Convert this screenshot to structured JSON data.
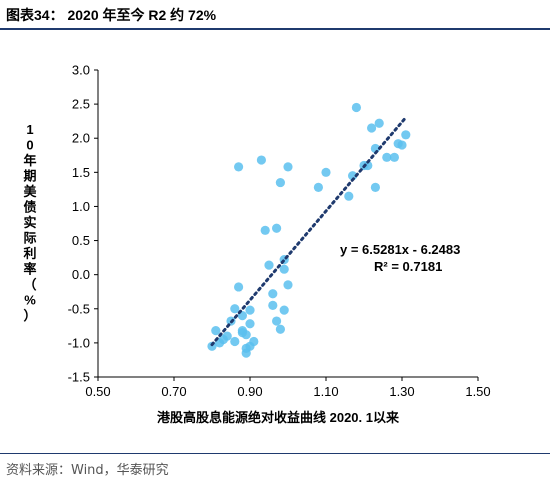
{
  "header": {
    "title": "图表34：  2020 年至今 R2 约 72%"
  },
  "footer": {
    "source": "资料来源：Wind，华泰研究"
  },
  "chart_data": {
    "type": "scatter",
    "title": "图表34：  2020 年至今 R2 约 72%",
    "xlabel": "港股高股息能源绝对收益曲线  2020. 1以来",
    "ylabel": "10年期美债实际利率（%）",
    "xlim": [
      0.5,
      1.5
    ],
    "ylim": [
      -1.5,
      3.0
    ],
    "x_ticks": [
      "0.50",
      "0.70",
      "0.90",
      "1.10",
      "1.30",
      "1.50"
    ],
    "y_ticks": [
      "3.0",
      "2.5",
      "2.0",
      "1.5",
      "1.0",
      "0.5",
      "0.0",
      "-0.5",
      "-1.0",
      "-1.5"
    ],
    "grid": false,
    "point_color": "#5bc0ee",
    "trendline_color": "#1f3a6e",
    "trendline": {
      "equation": "y = 6.5281x - 6.2483",
      "r2_label": "R² = 0.7181",
      "slope": 6.5281,
      "intercept": -6.2483,
      "x_range": [
        0.8,
        1.31
      ]
    },
    "series": [
      {
        "points": [
          [
            0.8,
            -1.05
          ],
          [
            0.81,
            -0.82
          ],
          [
            0.82,
            -1.0
          ],
          [
            0.83,
            -0.95
          ],
          [
            0.84,
            -0.9
          ],
          [
            0.85,
            -0.68
          ],
          [
            0.86,
            -0.98
          ],
          [
            0.86,
            -0.5
          ],
          [
            0.87,
            -0.18
          ],
          [
            0.87,
            1.58
          ],
          [
            0.88,
            -0.6
          ],
          [
            0.88,
            -0.85
          ],
          [
            0.88,
            -0.82
          ],
          [
            0.89,
            -0.88
          ],
          [
            0.89,
            -1.15
          ],
          [
            0.89,
            -1.08
          ],
          [
            0.9,
            -0.72
          ],
          [
            0.9,
            -0.52
          ],
          [
            0.9,
            -1.05
          ],
          [
            0.91,
            -0.98
          ],
          [
            0.93,
            1.68
          ],
          [
            0.94,
            0.65
          ],
          [
            0.95,
            0.14
          ],
          [
            0.96,
            -0.28
          ],
          [
            0.96,
            -0.45
          ],
          [
            0.97,
            -0.68
          ],
          [
            0.97,
            0.68
          ],
          [
            0.98,
            1.35
          ],
          [
            0.98,
            -0.8
          ],
          [
            0.99,
            0.08
          ],
          [
            0.99,
            0.22
          ],
          [
            0.99,
            -0.52
          ],
          [
            1.0,
            -0.15
          ],
          [
            1.0,
            1.58
          ],
          [
            1.08,
            1.28
          ],
          [
            1.1,
            1.5
          ],
          [
            1.16,
            1.15
          ],
          [
            1.17,
            1.45
          ],
          [
            1.18,
            2.45
          ],
          [
            1.2,
            1.6
          ],
          [
            1.21,
            1.6
          ],
          [
            1.22,
            2.15
          ],
          [
            1.23,
            1.28
          ],
          [
            1.23,
            1.85
          ],
          [
            1.24,
            2.22
          ],
          [
            1.26,
            1.72
          ],
          [
            1.28,
            1.72
          ],
          [
            1.29,
            1.92
          ],
          [
            1.3,
            1.9
          ],
          [
            1.31,
            2.05
          ]
        ]
      }
    ]
  }
}
